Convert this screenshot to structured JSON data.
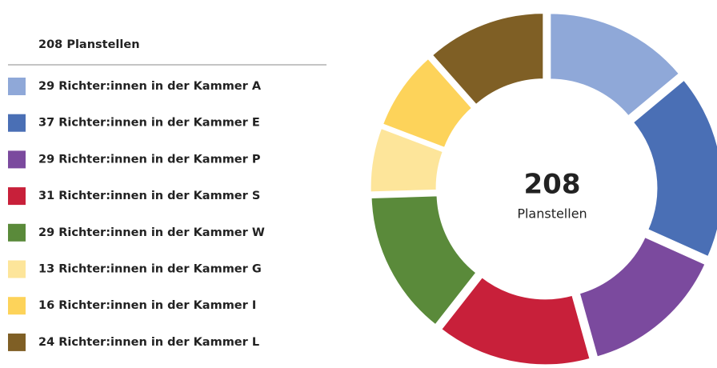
{
  "chart_data": {
    "type": "donut",
    "legend_title": "208 Planstellen",
    "total": 208,
    "center_subtitle": "Planstellen",
    "categories": [
      "29 Richter:innen in der Kammer A",
      "37 Richter:innen in der Kammer E",
      "29 Richter:innen in der Kammer P",
      "31 Richter:innen in der Kammer S",
      "29 Richter:innen in der Kammer W",
      "13 Richter:innen in der Kammer G",
      "16 Richter:innen in der Kammer I",
      "24 Richter:innen in der Kammer L"
    ],
    "values": [
      29,
      37,
      29,
      31,
      29,
      13,
      16,
      24
    ],
    "colors": [
      "#8fa8d8",
      "#4a6fb5",
      "#7b4a9e",
      "#c8203a",
      "#5a8a3a",
      "#fde59a",
      "#fdd35a",
      "#7f5f25"
    ],
    "legend": "left"
  }
}
